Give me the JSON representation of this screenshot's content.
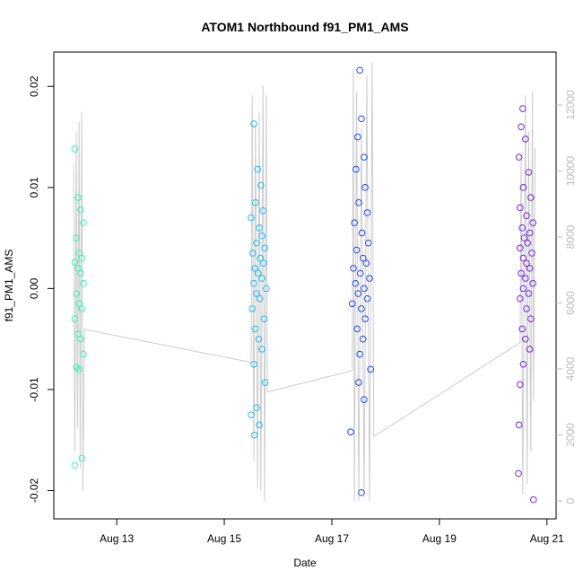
{
  "chart_data": {
    "type": "scatter",
    "title": "ATOM1 Northbound f91_PM1_AMS",
    "x_label": "Date",
    "y_label": "f91_PM1_AMS",
    "xlim": [
      11.83,
      21.17
    ],
    "xticks": [
      {
        "value": 13,
        "label": "Aug 13"
      },
      {
        "value": 15,
        "label": "Aug 15"
      },
      {
        "value": 17,
        "label": "Aug 17"
      },
      {
        "value": 19,
        "label": "Aug 19"
      },
      {
        "value": 21,
        "label": "Aug 21"
      }
    ],
    "ylim": [
      -0.0228,
      0.0234
    ],
    "yticks": [
      -0.02,
      -0.01,
      {
        "value": 0,
        "label": "0.00"
      },
      0.01,
      0.02
    ],
    "y2lim": [
      -544,
      13605
    ],
    "y2ticks": [
      0,
      2000,
      4000,
      6000,
      8000,
      10000,
      12000
    ],
    "series": [
      {
        "color": "#33f5b8",
        "x": [
          12.22,
          12.28,
          12.33,
          12.38,
          12.25,
          12.3,
          12.35,
          12.22,
          12.28,
          12.33,
          12.38,
          12.25,
          12.3,
          12.35,
          12.22,
          12.28,
          12.33,
          12.38,
          12.25,
          12.3,
          12.35,
          12.22
        ],
        "values": [
          0.0138,
          0.009,
          0.0078,
          0.0065,
          0.005,
          0.0035,
          0.003,
          0.0026,
          0.002,
          0.0015,
          0.0005,
          -0.0005,
          -0.0015,
          -0.002,
          -0.003,
          -0.0045,
          -0.005,
          -0.0065,
          -0.0078,
          -0.008,
          -0.0168,
          -0.0175
        ]
      },
      {
        "color": "#1fbcf5",
        "x": [
          15.55,
          15.62,
          15.68,
          15.58,
          15.72,
          15.5,
          15.65,
          15.7,
          15.6,
          15.75,
          15.53,
          15.67,
          15.73,
          15.57,
          15.63,
          15.7,
          15.55,
          15.78,
          15.6,
          15.66,
          15.52,
          15.74,
          15.58,
          15.64,
          15.7,
          15.55,
          15.76,
          15.6,
          15.5,
          15.65,
          15.56
        ],
        "values": [
          0.0163,
          0.0118,
          0.0102,
          0.0085,
          0.0077,
          0.007,
          0.006,
          0.0052,
          0.0045,
          0.004,
          0.0035,
          0.003,
          0.0025,
          0.002,
          0.0015,
          0.001,
          0.0005,
          0,
          -0.0005,
          -0.001,
          -0.002,
          -0.003,
          -0.004,
          -0.005,
          -0.006,
          -0.0075,
          -0.0093,
          -0.0118,
          -0.0125,
          -0.0135,
          -0.0145
        ]
      },
      {
        "color": "#2248f2",
        "x": [
          17.52,
          17.55,
          17.48,
          17.6,
          17.45,
          17.62,
          17.5,
          17.66,
          17.42,
          17.56,
          17.68,
          17.46,
          17.58,
          17.64,
          17.4,
          17.53,
          17.7,
          17.44,
          17.6,
          17.49,
          17.66,
          17.38,
          17.55,
          17.62,
          17.47,
          17.58,
          17.52,
          17.72,
          17.5,
          17.6,
          17.35,
          17.55
        ],
        "values": [
          0.0216,
          0.0168,
          0.015,
          0.013,
          0.0118,
          0.01,
          0.0085,
          0.0075,
          0.0065,
          0.0055,
          0.0045,
          0.0038,
          0.003,
          0.0025,
          0.002,
          0.0015,
          0.001,
          0.0005,
          0,
          -0.0005,
          -0.001,
          -0.0015,
          -0.002,
          -0.003,
          -0.004,
          -0.005,
          -0.0065,
          -0.008,
          -0.0093,
          -0.011,
          -0.0142,
          -0.0202
        ]
      },
      {
        "color": "#7426e6",
        "x": [
          20.55,
          20.52,
          20.6,
          20.48,
          20.66,
          20.56,
          20.7,
          20.5,
          20.62,
          20.74,
          20.54,
          20.68,
          20.58,
          20.64,
          20.5,
          20.72,
          20.56,
          20.62,
          20.68,
          20.52,
          20.6,
          20.74,
          20.56,
          20.66,
          20.5,
          20.62,
          20.7,
          20.54,
          20.6,
          20.68,
          20.56,
          20.5,
          20.48,
          20.47,
          20.75
        ],
        "values": [
          0.0178,
          0.016,
          0.0148,
          0.013,
          0.0115,
          0.01,
          0.009,
          0.008,
          0.0072,
          0.0065,
          0.006,
          0.0055,
          0.005,
          0.0045,
          0.004,
          0.0035,
          0.003,
          0.0025,
          0.002,
          0.0015,
          0.001,
          0.0005,
          0,
          -0.0005,
          -0.001,
          -0.002,
          -0.003,
          -0.004,
          -0.005,
          -0.006,
          -0.0075,
          -0.0095,
          -0.0135,
          -0.0183,
          -0.0209
        ]
      },
      {
        "type": "line",
        "axis": "y2",
        "color": "#cccccc",
        "x": [
          12.2,
          12.22,
          12.25,
          12.27,
          12.3,
          12.32,
          12.35,
          12.37,
          12.4,
          15.5,
          15.52,
          15.55,
          15.58,
          15.62,
          15.65,
          15.68,
          15.72,
          15.75,
          15.78,
          15.8,
          17.38,
          17.4,
          17.42,
          17.46,
          17.5,
          17.55,
          17.6,
          17.65,
          17.7,
          17.75,
          17.78,
          20.5,
          20.52,
          20.55,
          20.6,
          20.63,
          20.66,
          20.7,
          20.73,
          20.75,
          20.78
        ],
        "values": [
          10200,
          1500,
          11200,
          2200,
          11500,
          1000,
          11800,
          300,
          5200,
          4200,
          12300,
          1200,
          11400,
          400,
          11800,
          300,
          12600,
          0,
          12300,
          3300,
          3950,
          13100,
          0,
          12400,
          0,
          11300,
          100,
          12900,
          0,
          13300,
          1950,
          4800,
          10500,
          200,
          12300,
          500,
          11200,
          1500,
          12400,
          3000,
          10700
        ]
      }
    ]
  }
}
